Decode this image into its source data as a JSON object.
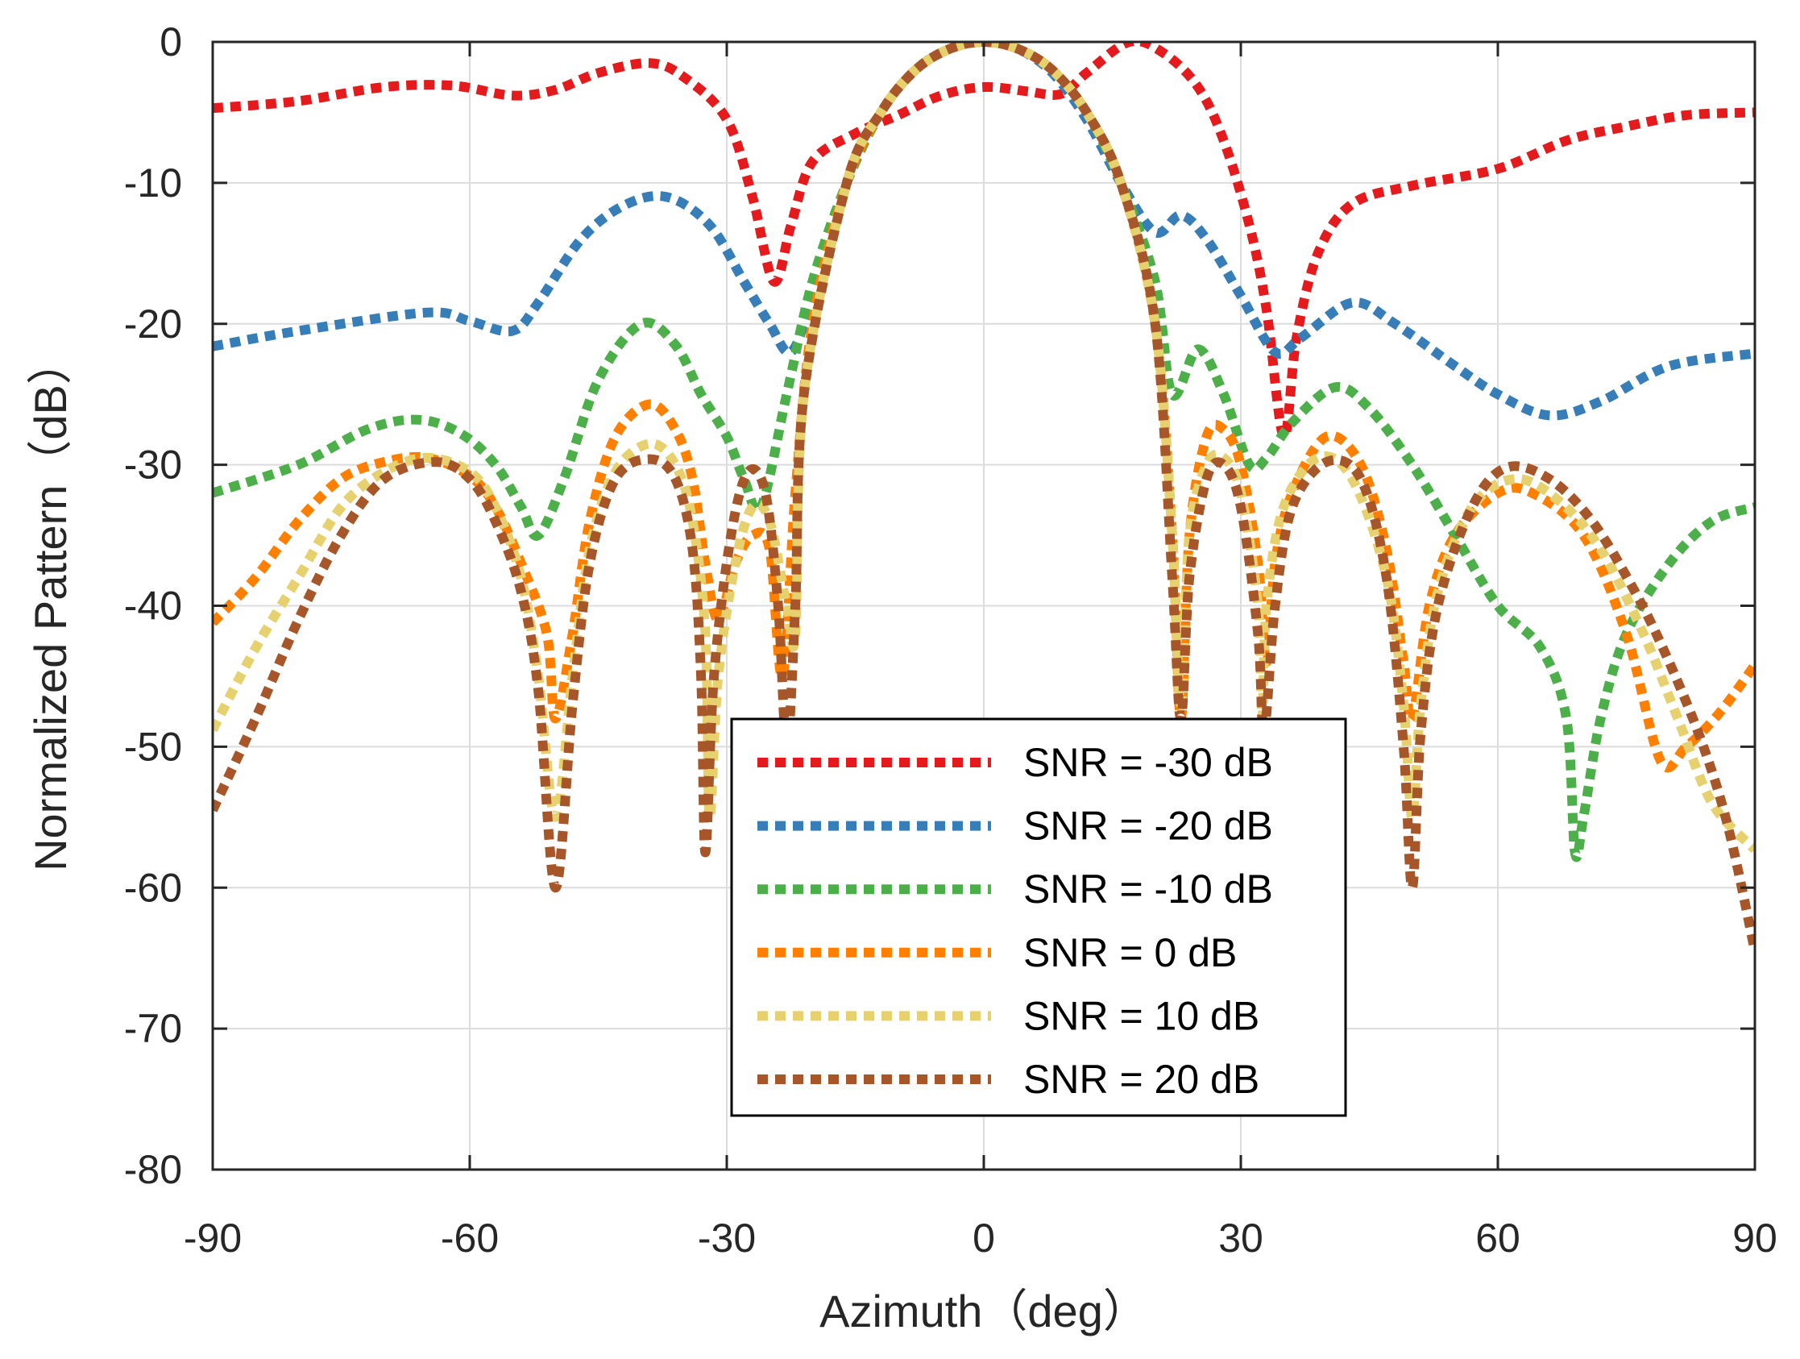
{
  "chart_data": {
    "type": "line",
    "title": "",
    "xlabel": "Azimuth（deg）",
    "ylabel": "Normalized Pattern（dB）",
    "xlim": [
      -90,
      90
    ],
    "ylim": [
      -80,
      0
    ],
    "xticks": [
      "-90",
      "-60",
      "-30",
      "0",
      "30",
      "60",
      "90"
    ],
    "yticks": [
      "0",
      "-10",
      "-20",
      "-30",
      "-40",
      "-50",
      "-60",
      "-70",
      "-80"
    ],
    "grid": true,
    "legend_position": "bottom-center",
    "series": [
      {
        "name": "SNR = -30 dB",
        "color": "#e41a1c",
        "points": [
          [
            -90,
            -4.7
          ],
          [
            -80,
            -4.2
          ],
          [
            -70,
            -3.2
          ],
          [
            -62,
            -3.1
          ],
          [
            -55,
            -3.8
          ],
          [
            -50,
            -3.4
          ],
          [
            -45,
            -2.2
          ],
          [
            -39,
            -1.5
          ],
          [
            -35,
            -2.5
          ],
          [
            -30,
            -5.5
          ],
          [
            -27,
            -11
          ],
          [
            -24.5,
            -17
          ],
          [
            -22.5,
            -13
          ],
          [
            -20,
            -8.5
          ],
          [
            -15,
            -6.5
          ],
          [
            -10,
            -5.2
          ],
          [
            -5,
            -3.8
          ],
          [
            0,
            -3.2
          ],
          [
            5,
            -3.5
          ],
          [
            9,
            -3.7
          ],
          [
            12,
            -2.2
          ],
          [
            17,
            0
          ],
          [
            21,
            -0.8
          ],
          [
            25,
            -3.2
          ],
          [
            28,
            -7
          ],
          [
            31,
            -13
          ],
          [
            33,
            -19
          ],
          [
            35,
            -28
          ],
          [
            36.5,
            -21
          ],
          [
            39,
            -15
          ],
          [
            43,
            -11.5
          ],
          [
            50,
            -10.2
          ],
          [
            60,
            -9
          ],
          [
            68,
            -7
          ],
          [
            75,
            -6
          ],
          [
            82,
            -5.2
          ],
          [
            90,
            -5
          ]
        ]
      },
      {
        "name": "SNR = -20 dB",
        "color": "#377eb8",
        "points": [
          [
            -90,
            -21.6
          ],
          [
            -80,
            -20.5
          ],
          [
            -65,
            -19.2
          ],
          [
            -60,
            -19.8
          ],
          [
            -55,
            -20.5
          ],
          [
            -52,
            -18.5
          ],
          [
            -47,
            -14
          ],
          [
            -42,
            -11.6
          ],
          [
            -37,
            -11
          ],
          [
            -32,
            -13
          ],
          [
            -28,
            -17
          ],
          [
            -25,
            -20
          ],
          [
            -22.5,
            -22
          ],
          [
            -20,
            -18
          ],
          [
            -16,
            -10
          ],
          [
            -12,
            -5
          ],
          [
            -8,
            -2
          ],
          [
            -4,
            -0.5
          ],
          [
            0,
            0
          ],
          [
            4,
            -0.5
          ],
          [
            8,
            -2.2
          ],
          [
            12,
            -5.5
          ],
          [
            16,
            -10
          ],
          [
            20,
            -13.5
          ],
          [
            23,
            -12.3
          ],
          [
            26,
            -14
          ],
          [
            30,
            -18
          ],
          [
            34,
            -22
          ],
          [
            37,
            -21
          ],
          [
            43,
            -18.5
          ],
          [
            48,
            -20
          ],
          [
            55,
            -23
          ],
          [
            60,
            -25
          ],
          [
            66,
            -26.5
          ],
          [
            72,
            -25.5
          ],
          [
            80,
            -23
          ],
          [
            90,
            -22.1
          ]
        ]
      },
      {
        "name": "SNR = -10 dB",
        "color": "#4daf4a",
        "points": [
          [
            -90,
            -32
          ],
          [
            -80,
            -30
          ],
          [
            -72,
            -27.5
          ],
          [
            -66,
            -26.8
          ],
          [
            -61,
            -27.8
          ],
          [
            -57,
            -30
          ],
          [
            -54,
            -33
          ],
          [
            -52,
            -35
          ],
          [
            -49,
            -31
          ],
          [
            -45,
            -24
          ],
          [
            -40,
            -20
          ],
          [
            -36,
            -21.5
          ],
          [
            -33,
            -25
          ],
          [
            -30,
            -28
          ],
          [
            -28,
            -31
          ],
          [
            -26,
            -33
          ],
          [
            -23,
            -25
          ],
          [
            -20,
            -17
          ],
          [
            -16,
            -10
          ],
          [
            -12,
            -5
          ],
          [
            -8,
            -2
          ],
          [
            -4,
            -0.5
          ],
          [
            0,
            0
          ],
          [
            4,
            -0.5
          ],
          [
            8,
            -2
          ],
          [
            12,
            -5
          ],
          [
            16,
            -10
          ],
          [
            20,
            -17
          ],
          [
            22,
            -25
          ],
          [
            25,
            -21.8
          ],
          [
            28,
            -25
          ],
          [
            31,
            -30
          ],
          [
            33,
            -29.5
          ],
          [
            36,
            -27
          ],
          [
            41,
            -24.5
          ],
          [
            45,
            -26
          ],
          [
            50,
            -30
          ],
          [
            55,
            -35
          ],
          [
            60,
            -40
          ],
          [
            65,
            -43
          ],
          [
            68,
            -48
          ],
          [
            69,
            -57.5
          ],
          [
            70,
            -55
          ],
          [
            72,
            -48
          ],
          [
            75,
            -42
          ],
          [
            80,
            -37
          ],
          [
            85,
            -34
          ],
          [
            90,
            -33
          ]
        ]
      },
      {
        "name": "SNR = 0 dB",
        "color": "#ff7f00",
        "points": [
          [
            -90,
            -41.2
          ],
          [
            -85,
            -38
          ],
          [
            -80,
            -34
          ],
          [
            -75,
            -31
          ],
          [
            -70,
            -29.8
          ],
          [
            -65,
            -29.5
          ],
          [
            -60,
            -30.8
          ],
          [
            -57,
            -33
          ],
          [
            -54,
            -37
          ],
          [
            -51,
            -42
          ],
          [
            -50,
            -48
          ],
          [
            -48,
            -42
          ],
          [
            -46,
            -34
          ],
          [
            -43,
            -28
          ],
          [
            -39,
            -25.7
          ],
          [
            -36,
            -27.5
          ],
          [
            -34,
            -31
          ],
          [
            -32.5,
            -37
          ],
          [
            -31,
            -41
          ],
          [
            -29,
            -37
          ],
          [
            -27,
            -35
          ],
          [
            -25,
            -36
          ],
          [
            -23.5,
            -45
          ],
          [
            -22,
            -32
          ],
          [
            -20,
            -20
          ],
          [
            -16,
            -10
          ],
          [
            -12,
            -5
          ],
          [
            -8,
            -2
          ],
          [
            -4,
            -0.5
          ],
          [
            0,
            0
          ],
          [
            4,
            -0.5
          ],
          [
            8,
            -2
          ],
          [
            12,
            -5
          ],
          [
            16,
            -10
          ],
          [
            20,
            -20
          ],
          [
            22,
            -35
          ],
          [
            23,
            -48
          ],
          [
            24,
            -35
          ],
          [
            26,
            -28
          ],
          [
            28,
            -27.5
          ],
          [
            30,
            -30
          ],
          [
            32,
            -37
          ],
          [
            33,
            -44
          ],
          [
            34,
            -37
          ],
          [
            36,
            -32
          ],
          [
            40,
            -28
          ],
          [
            44,
            -30
          ],
          [
            47,
            -36
          ],
          [
            49,
            -44
          ],
          [
            50,
            -48
          ],
          [
            52,
            -40
          ],
          [
            55,
            -35
          ],
          [
            60,
            -32
          ],
          [
            64,
            -32
          ],
          [
            70,
            -35
          ],
          [
            75,
            -42
          ],
          [
            79,
            -51
          ],
          [
            82,
            -50
          ],
          [
            86,
            -47.5
          ],
          [
            90,
            -44.2
          ]
        ]
      },
      {
        "name": "SNR = 10 dB",
        "color": "#e6d16e",
        "points": [
          [
            -90,
            -48.8
          ],
          [
            -85,
            -43
          ],
          [
            -80,
            -38
          ],
          [
            -75,
            -33
          ],
          [
            -70,
            -30.5
          ],
          [
            -65,
            -29.5
          ],
          [
            -60,
            -30.5
          ],
          [
            -57,
            -33
          ],
          [
            -54,
            -38
          ],
          [
            -52,
            -45
          ],
          [
            -50,
            -55
          ],
          [
            -48,
            -45
          ],
          [
            -46,
            -36
          ],
          [
            -43,
            -30.5
          ],
          [
            -39,
            -28.5
          ],
          [
            -36,
            -30
          ],
          [
            -34,
            -34
          ],
          [
            -32.5,
            -42
          ],
          [
            -32,
            -55
          ],
          [
            -31,
            -45
          ],
          [
            -29,
            -37
          ],
          [
            -27,
            -33
          ],
          [
            -25,
            -34
          ],
          [
            -23,
            -40
          ],
          [
            -22,
            -42
          ],
          [
            -21,
            -25
          ],
          [
            -16,
            -10
          ],
          [
            -12,
            -5
          ],
          [
            -8,
            -2
          ],
          [
            -4,
            -0.5
          ],
          [
            0,
            0
          ],
          [
            4,
            -0.5
          ],
          [
            8,
            -2
          ],
          [
            12,
            -5
          ],
          [
            16,
            -10
          ],
          [
            20,
            -20
          ],
          [
            22,
            -35
          ],
          [
            23,
            -47
          ],
          [
            24,
            -35
          ],
          [
            26,
            -30
          ],
          [
            28,
            -29.5
          ],
          [
            30,
            -32
          ],
          [
            32,
            -40
          ],
          [
            32.5,
            -48
          ],
          [
            33,
            -40
          ],
          [
            35,
            -33
          ],
          [
            39,
            -29.5
          ],
          [
            43,
            -31
          ],
          [
            47,
            -38
          ],
          [
            49,
            -47
          ],
          [
            50,
            -55
          ],
          [
            51,
            -47
          ],
          [
            53,
            -39
          ],
          [
            57,
            -33
          ],
          [
            62,
            -31
          ],
          [
            67,
            -32.5
          ],
          [
            72,
            -36
          ],
          [
            77,
            -42
          ],
          [
            81,
            -48
          ],
          [
            85,
            -54
          ],
          [
            90,
            -57.3
          ]
        ]
      },
      {
        "name": "SNR = 20 dB",
        "color": "#a65628",
        "points": [
          [
            -90,
            -54.5
          ],
          [
            -85,
            -48
          ],
          [
            -80,
            -41
          ],
          [
            -75,
            -35
          ],
          [
            -70,
            -31
          ],
          [
            -64,
            -29.8
          ],
          [
            -60,
            -31
          ],
          [
            -57,
            -34
          ],
          [
            -54,
            -39
          ],
          [
            -52,
            -46
          ],
          [
            -50,
            -60
          ],
          [
            -48,
            -47
          ],
          [
            -46,
            -37
          ],
          [
            -43,
            -31
          ],
          [
            -39,
            -29.6
          ],
          [
            -36,
            -31
          ],
          [
            -34,
            -36
          ],
          [
            -33,
            -45
          ],
          [
            -32.5,
            -57.5
          ],
          [
            -31.5,
            -45
          ],
          [
            -29.5,
            -35
          ],
          [
            -27.5,
            -30.5
          ],
          [
            -25.5,
            -32
          ],
          [
            -24,
            -40
          ],
          [
            -23,
            -50
          ],
          [
            -22,
            -40
          ],
          [
            -21,
            -25
          ],
          [
            -16,
            -10
          ],
          [
            -12,
            -5
          ],
          [
            -8,
            -2
          ],
          [
            -4,
            -0.5
          ],
          [
            0,
            0
          ],
          [
            4,
            -0.5
          ],
          [
            8,
            -2
          ],
          [
            12,
            -5
          ],
          [
            16,
            -10
          ],
          [
            20,
            -20
          ],
          [
            22,
            -38
          ],
          [
            23,
            -48
          ],
          [
            24,
            -38
          ],
          [
            26,
            -31
          ],
          [
            28,
            -30
          ],
          [
            30,
            -33
          ],
          [
            32,
            -42
          ],
          [
            32.7,
            -49
          ],
          [
            34,
            -40
          ],
          [
            36,
            -33
          ],
          [
            40,
            -29.8
          ],
          [
            44,
            -31
          ],
          [
            47,
            -38
          ],
          [
            49,
            -50
          ],
          [
            50,
            -60
          ],
          [
            51,
            -49
          ],
          [
            53,
            -40
          ],
          [
            57,
            -33
          ],
          [
            61,
            -30.2
          ],
          [
            66,
            -31
          ],
          [
            71,
            -34
          ],
          [
            76,
            -39
          ],
          [
            80,
            -44
          ],
          [
            84,
            -50
          ],
          [
            87,
            -56
          ],
          [
            90,
            -64.5
          ]
        ]
      }
    ]
  }
}
